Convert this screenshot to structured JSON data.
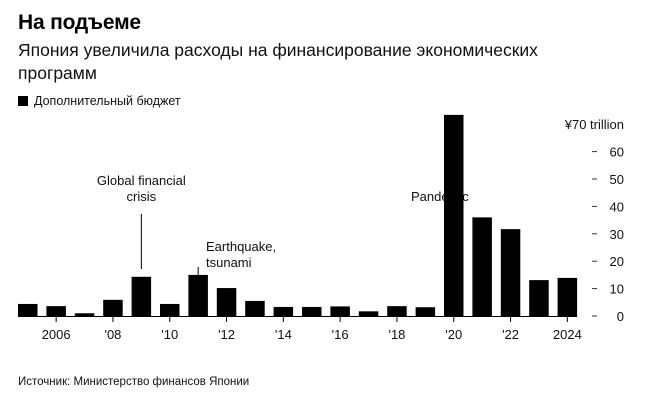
{
  "header": {
    "title": "На подъеме",
    "subtitle": "Япония увеличила расходы на финансирование экономических программ"
  },
  "legend": {
    "items": [
      {
        "label": "Дополнительный бюджет",
        "color": "#000000"
      }
    ]
  },
  "footer": {
    "source": "Источник: Министерство финансов Японии"
  },
  "chart_data": {
    "type": "bar",
    "title": "На подъеме",
    "subtitle": "Япония увеличила расходы на финансирование экономических программ",
    "xlabel": "",
    "ylabel": "¥ trillion",
    "categories": [
      "2005",
      "2006",
      "2007",
      "2008",
      "2009",
      "2010",
      "2011",
      "2012",
      "2013",
      "2014",
      "2015",
      "2016",
      "2017",
      "2018",
      "2019",
      "2020",
      "2021",
      "2022",
      "2023",
      "2024"
    ],
    "series": [
      {
        "name": "Дополнительный бюджет",
        "color": "#000000",
        "values": [
          4.4,
          3.6,
          1.0,
          5.9,
          14.3,
          4.4,
          15.0,
          10.2,
          5.5,
          3.3,
          3.3,
          3.5,
          1.7,
          3.6,
          3.2,
          73.4,
          36.0,
          31.7,
          13.1,
          13.9
        ]
      }
    ],
    "x_tick_labels": [
      {
        "year": "2006",
        "label": "2006"
      },
      {
        "year": "2008",
        "label": "'08"
      },
      {
        "year": "2010",
        "label": "'10"
      },
      {
        "year": "2012",
        "label": "'12"
      },
      {
        "year": "2014",
        "label": "'14"
      },
      {
        "year": "2016",
        "label": "'16"
      },
      {
        "year": "2018",
        "label": "'18"
      },
      {
        "year": "2020",
        "label": "'20"
      },
      {
        "year": "2022",
        "label": "'22"
      },
      {
        "year": "2024",
        "label": "2024"
      }
    ],
    "y_ticks": [
      0,
      10,
      20,
      30,
      40,
      50,
      60,
      70
    ],
    "y_top_label": "¥70 trillion",
    "ylim": [
      0,
      70
    ],
    "y_axis_position": "right",
    "grid": false,
    "legend_position": "top-left",
    "annotations": [
      {
        "text": "Global financial crisis",
        "lines": [
          "Global financial",
          "crisis"
        ],
        "year": "2009"
      },
      {
        "text": "Earthquake, tsunami",
        "lines": [
          "Earthquake,",
          "tsunami"
        ],
        "year": "2011"
      },
      {
        "text": "Pandemic",
        "lines": [
          "Pandemic"
        ],
        "year": "2020"
      }
    ]
  }
}
